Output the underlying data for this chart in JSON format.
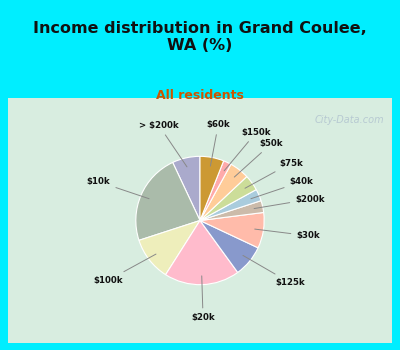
{
  "title": "Income distribution in Grand Coulee,\nWA (%)",
  "subtitle": "All residents",
  "title_color": "#111111",
  "subtitle_color": "#cc5500",
  "bg_color_cyan": "#00eeff",
  "bg_color_chart": "#d8ede0",
  "labels": [
    "> $200k",
    "$10k",
    "$100k",
    "$20k",
    "$125k",
    "$30k",
    "$200k",
    "$40k",
    "$75k",
    "$50k",
    "$150k",
    "$60k"
  ],
  "values": [
    7,
    23,
    11,
    19,
    8,
    9,
    3,
    3,
    4,
    5,
    2,
    6
  ],
  "colors": [
    "#aaaacc",
    "#aabbaa",
    "#eeeebb",
    "#ffbbcc",
    "#8899cc",
    "#ffbbaa",
    "#ccbbaa",
    "#aaccdd",
    "#ccdd99",
    "#ffcc99",
    "#ffaaaa",
    "#cc9933"
  ],
  "startangle": 90,
  "watermark": "City-Data.com"
}
